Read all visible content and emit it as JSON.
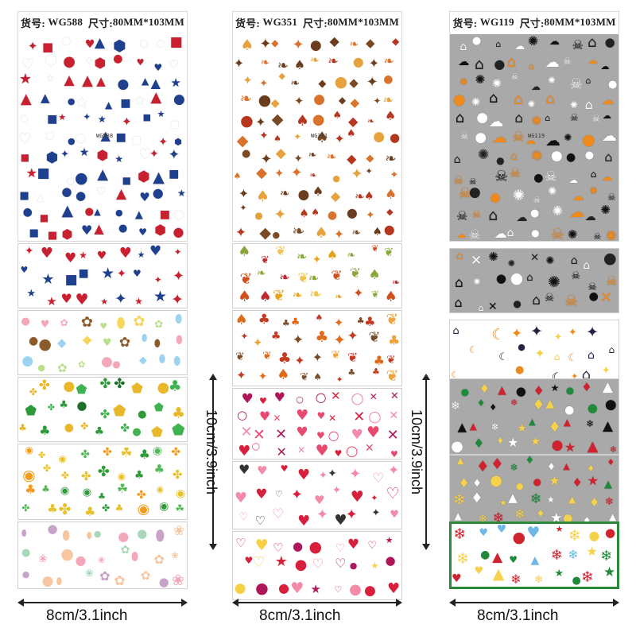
{
  "sheets": [
    {
      "header_prefix": "货号:",
      "code": "WG588",
      "size_prefix": "尺寸:",
      "size": "80MM*103MM",
      "inner_code": "WG588",
      "background": "#ffffff",
      "theme": "4th-of-july",
      "strips": [
        {
          "theme": "usa-patriotic",
          "background": "#fafafa"
        },
        {
          "theme": "easter",
          "background": "#ffffff"
        },
        {
          "theme": "st-patricks",
          "background": "#ffffff"
        },
        {
          "theme": "st-patricks-2",
          "background": "#ffffff"
        },
        {
          "theme": "easter-2",
          "background": "#ffffff"
        }
      ]
    },
    {
      "header_prefix": "货号:",
      "code": "WG351",
      "size_prefix": "尺寸:",
      "size": "80MM*103MM",
      "inner_code": "WG351",
      "background": "#ffffff",
      "theme": "thanksgiving",
      "strips": [
        {
          "theme": "autumn-leaves",
          "background": "#ffffff"
        },
        {
          "theme": "autumn-trees",
          "background": "#ffffff"
        },
        {
          "theme": "valentine",
          "background": "#ffffff"
        },
        {
          "theme": "valentine-2",
          "background": "#ffffff"
        },
        {
          "theme": "valentine-3",
          "background": "#ffffff"
        }
      ]
    },
    {
      "header_prefix": "货号:",
      "code": "WG119",
      "size_prefix": "尺寸:",
      "size": "80MM*103MM",
      "inner_code": "WG119",
      "background": "#a9a9a9",
      "theme": "halloween",
      "strips": [
        {
          "theme": "halloween-gray",
          "background": "#a9a9a9"
        },
        {
          "theme": "halloween-night",
          "background": "#ffffff"
        },
        {
          "theme": "christmas-gray",
          "background": "#a9a9a9"
        },
        {
          "theme": "christmas-gray-2",
          "background": "#a9a9a9"
        },
        {
          "theme": "christmas-white",
          "background": "#ffffff"
        }
      ]
    }
  ],
  "dimensions": {
    "width_labels": [
      "8cm/3.1inch",
      "8cm/3.1inch",
      "8cm/3.1inch"
    ],
    "height_labels": [
      "10cm/3.9inch",
      "10cm/3.9inch"
    ]
  },
  "colors": {
    "usa_red": "#c8202f",
    "usa_blue": "#1f3f8f",
    "autumn_orange": "#d9722b",
    "autumn_brown": "#7a4a24",
    "valentine_red": "#d81f3c",
    "valentine_pink": "#f28aa8",
    "shamrock_green": "#2f9a3a",
    "pumpkin_orange": "#f08a1c",
    "christmas_red": "#cf2330",
    "christmas_green": "#1f8a3a"
  }
}
